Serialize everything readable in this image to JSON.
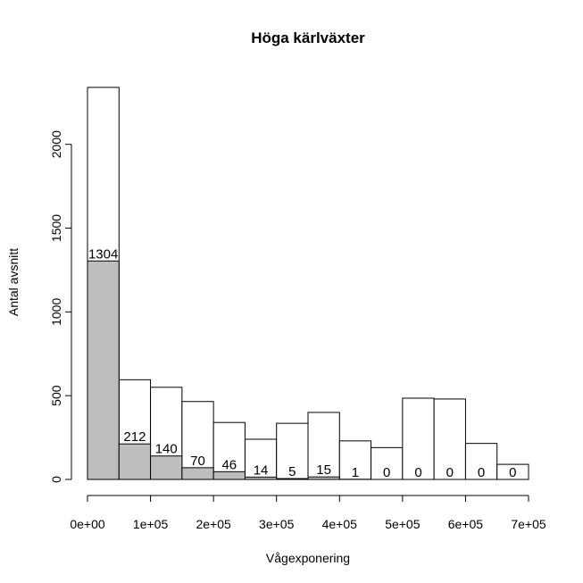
{
  "chart_data": {
    "type": "bar",
    "title": "Höga kärlväxter",
    "xlabel": "Vågexponering",
    "ylabel": "Antal avsnitt",
    "bin_width": 50000,
    "bin_starts": [
      0,
      50000,
      100000,
      150000,
      200000,
      250000,
      300000,
      350000,
      400000,
      450000,
      500000,
      550000,
      600000,
      650000
    ],
    "xlim": [
      0,
      700000
    ],
    "ylim": [
      0,
      2350
    ],
    "x_ticks": [
      {
        "value": 0,
        "label": "0e+00"
      },
      {
        "value": 100000,
        "label": "1e+05"
      },
      {
        "value": 200000,
        "label": "2e+05"
      },
      {
        "value": 300000,
        "label": "3e+05"
      },
      {
        "value": 400000,
        "label": "4e+05"
      },
      {
        "value": 500000,
        "label": "5e+05"
      },
      {
        "value": 600000,
        "label": "6e+05"
      },
      {
        "value": 700000,
        "label": "7e+05"
      }
    ],
    "y_ticks": [
      {
        "value": 0,
        "label": "0"
      },
      {
        "value": 500,
        "label": "500"
      },
      {
        "value": 1000,
        "label": "1000"
      },
      {
        "value": 1500,
        "label": "1500"
      },
      {
        "value": 2000,
        "label": "2000"
      }
    ],
    "series": [
      {
        "values": [
          2340,
          595,
          550,
          465,
          340,
          240,
          335,
          400,
          230,
          190,
          485,
          480,
          215,
          90
        ],
        "fill": "#ffffff"
      },
      {
        "values": [
          1304,
          212,
          140,
          70,
          46,
          14,
          5,
          15,
          1,
          0,
          0,
          0,
          0,
          0
        ],
        "fill": "#bebebe"
      }
    ],
    "data_labels": [
      "1304",
      "212",
      "140",
      "70",
      "46",
      "14",
      "5",
      "15",
      "1",
      "0",
      "0",
      "0",
      "0",
      "0"
    ],
    "grid": false,
    "legend": "none"
  }
}
